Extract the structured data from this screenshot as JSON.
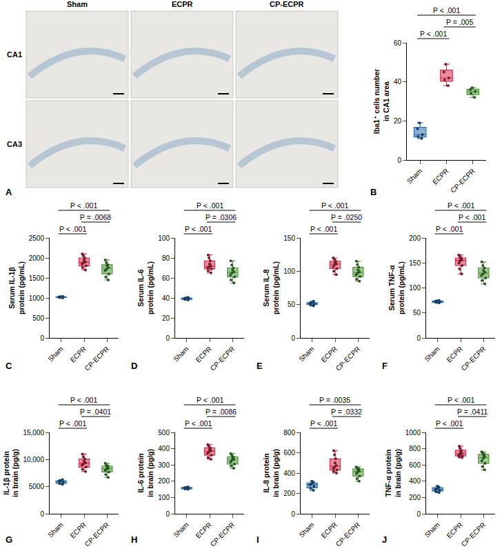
{
  "image_panel": {
    "panel": "A",
    "columns": [
      "Sham",
      "ECPR",
      "CP-ECPR"
    ],
    "rows": [
      "CA1",
      "CA3"
    ]
  },
  "chart_data": [
    {
      "type": "box",
      "panel": "B",
      "ylabel": "Iba1⁺ cells number\nin CA1 area",
      "categories": [
        "Sham",
        "ECPR",
        "CP-ECPR"
      ],
      "colors": [
        "#2f6fb0",
        "#d6304f",
        "#4f9a3a"
      ],
      "values": [
        [
          11,
          12,
          13,
          16,
          19
        ],
        [
          38,
          41,
          42,
          45,
          49
        ],
        [
          32,
          34,
          35,
          36,
          37
        ]
      ],
      "ylim": [
        0,
        60
      ],
      "yticks": [
        0,
        20,
        40,
        60
      ],
      "comparisons": [
        {
          "groups": [
            "Sham",
            "ECPR"
          ],
          "label": "P < .001"
        },
        {
          "groups": [
            "ECPR",
            "CP-ECPR"
          ],
          "label": "P = .005"
        },
        {
          "groups": [
            "Sham",
            "CP-ECPR"
          ],
          "label": "P < .001"
        }
      ]
    },
    {
      "type": "box",
      "panel": "C",
      "ylabel": "Serum IL-1β\nprotein (pg/mL)",
      "categories": [
        "Sham",
        "ECPR",
        "CP-ECPR"
      ],
      "colors": [
        "#2f6fb0",
        "#d6304f",
        "#4f9a3a"
      ],
      "values": [
        [
          1000,
          1010,
          1020,
          1025,
          1030,
          1040
        ],
        [
          1700,
          1760,
          1800,
          1850,
          1880,
          1900,
          1950,
          2000,
          2050,
          2100
        ],
        [
          1450,
          1520,
          1600,
          1680,
          1720,
          1760,
          1800,
          1830,
          1880,
          1950
        ]
      ],
      "ylim": [
        0,
        2500
      ],
      "yticks": [
        0,
        500,
        1000,
        1500,
        2000,
        2500
      ],
      "comparisons": [
        {
          "groups": [
            "Sham",
            "ECPR"
          ],
          "label": "P < .001"
        },
        {
          "groups": [
            "ECPR",
            "CP-ECPR"
          ],
          "label": "P = .0068"
        },
        {
          "groups": [
            "Sham",
            "CP-ECPR"
          ],
          "label": "P < .001"
        }
      ]
    },
    {
      "type": "box",
      "panel": "D",
      "ylabel": "Serum IL-6\nprotein (pg/mL)",
      "categories": [
        "Sham",
        "ECPR",
        "CP-ECPR"
      ],
      "colors": [
        "#2f6fb0",
        "#d6304f",
        "#4f9a3a"
      ],
      "values": [
        [
          38,
          38.5,
          39,
          39.5,
          40,
          40.5
        ],
        [
          65,
          67,
          69,
          70,
          71,
          72,
          74,
          77,
          80,
          83
        ],
        [
          55,
          58,
          61,
          63,
          65,
          66,
          68,
          70,
          73,
          77
        ]
      ],
      "ylim": [
        0,
        100
      ],
      "yticks": [
        0,
        20,
        40,
        60,
        80,
        100
      ],
      "comparisons": [
        {
          "groups": [
            "Sham",
            "ECPR"
          ],
          "label": "P < .001"
        },
        {
          "groups": [
            "ECPR",
            "CP-ECPR"
          ],
          "label": "P = .0306"
        },
        {
          "groups": [
            "Sham",
            "CP-ECPR"
          ],
          "label": "P < .001"
        }
      ]
    },
    {
      "type": "box",
      "panel": "E",
      "ylabel": "Serum IL-8\nprotein (pg/mL)",
      "categories": [
        "Sham",
        "ECPR",
        "CP-ECPR"
      ],
      "colors": [
        "#2f6fb0",
        "#d6304f",
        "#4f9a3a"
      ],
      "values": [
        [
          48,
          50,
          51,
          52,
          53,
          55
        ],
        [
          95,
          100,
          104,
          107,
          110,
          111,
          113,
          115,
          118,
          120
        ],
        [
          85,
          88,
          92,
          95,
          97,
          99,
          102,
          106,
          110,
          115
        ]
      ],
      "ylim": [
        0,
        150
      ],
      "yticks": [
        0,
        50,
        100,
        150
      ],
      "comparisons": [
        {
          "groups": [
            "Sham",
            "ECPR"
          ],
          "label": "P < .001"
        },
        {
          "groups": [
            "ECPR",
            "CP-ECPR"
          ],
          "label": "P = .0250"
        },
        {
          "groups": [
            "Sham",
            "CP-ECPR"
          ],
          "label": "P < .001"
        }
      ]
    },
    {
      "type": "box",
      "panel": "F",
      "ylabel": "Serum TNF-α\nprotein (pg/mL)",
      "categories": [
        "Sham",
        "ECPR",
        "CP-ECPR"
      ],
      "colors": [
        "#2f6fb0",
        "#d6304f",
        "#4f9a3a"
      ],
      "values": [
        [
          70,
          71,
          72,
          73,
          74,
          75
        ],
        [
          128,
          138,
          145,
          150,
          154,
          156,
          158,
          160,
          163,
          166
        ],
        [
          108,
          115,
          120,
          125,
          128,
          131,
          135,
          140,
          145,
          152
        ]
      ],
      "ylim": [
        0,
        200
      ],
      "yticks": [
        0,
        50,
        100,
        150,
        200
      ],
      "comparisons": [
        {
          "groups": [
            "Sham",
            "ECPR"
          ],
          "label": "P < .001"
        },
        {
          "groups": [
            "ECPR",
            "CP-ECPR"
          ],
          "label": "P < .001"
        },
        {
          "groups": [
            "Sham",
            "CP-ECPR"
          ],
          "label": "P < .001"
        }
      ]
    },
    {
      "type": "box",
      "panel": "G",
      "ylabel": "IL-1β protein\nin brain (pg/g)",
      "categories": [
        "Sham",
        "ECPR",
        "CP-ECPR"
      ],
      "colors": [
        "#2f6fb0",
        "#d6304f",
        "#4f9a3a"
      ],
      "values": [
        [
          5400,
          5600,
          5800,
          6000,
          6100,
          6300
        ],
        [
          7800,
          8200,
          8600,
          9000,
          9200,
          9400,
          9700,
          10100,
          10500,
          11000
        ],
        [
          6700,
          7200,
          7700,
          8000,
          8200,
          8400,
          8600,
          8800,
          9000,
          9300
        ]
      ],
      "ylim": [
        0,
        15000
      ],
      "yticks": [
        0,
        5000,
        {
          "value": 10000,
          "label": "10,000"
        },
        {
          "value": 15000,
          "label": "15,000"
        }
      ],
      "comparisons": [
        {
          "groups": [
            "Sham",
            "ECPR"
          ],
          "label": "P < .001"
        },
        {
          "groups": [
            "ECPR",
            "CP-ECPR"
          ],
          "label": "P = .0401"
        },
        {
          "groups": [
            "Sham",
            "CP-ECPR"
          ],
          "label": "P < .001"
        }
      ]
    },
    {
      "type": "box",
      "panel": "H",
      "ylabel": "IL-6 protein\nin brain (pg/g)",
      "categories": [
        "Sham",
        "ECPR",
        "CP-ECPR"
      ],
      "colors": [
        "#2f6fb0",
        "#d6304f",
        "#4f9a3a"
      ],
      "values": [
        [
          150,
          153,
          156,
          159,
          162,
          165
        ],
        [
          335,
          345,
          360,
          372,
          380,
          388,
          395,
          405,
          415,
          425
        ],
        [
          280,
          295,
          305,
          318,
          328,
          335,
          342,
          350,
          360,
          370
        ]
      ],
      "ylim": [
        0,
        500
      ],
      "yticks": [
        0,
        100,
        200,
        300,
        400,
        500
      ],
      "comparisons": [
        {
          "groups": [
            "Sham",
            "ECPR"
          ],
          "label": "P < .001"
        },
        {
          "groups": [
            "ECPR",
            "CP-ECPR"
          ],
          "label": "P = .0086"
        },
        {
          "groups": [
            "Sham",
            "CP-ECPR"
          ],
          "label": "P < .001"
        }
      ]
    },
    {
      "type": "box",
      "panel": "I",
      "ylabel": "IL-8 protein\nin brain (pg/g)",
      "categories": [
        "Sham",
        "ECPR",
        "CP-ECPR"
      ],
      "colors": [
        "#2f6fb0",
        "#d6304f",
        "#4f9a3a"
      ],
      "values": [
        [
          230,
          250,
          270,
          285,
          295,
          305,
          320
        ],
        [
          400,
          415,
          430,
          445,
          460,
          475,
          500,
          540,
          580,
          620
        ],
        [
          320,
          345,
          370,
          395,
          410,
          420,
          430,
          440,
          450,
          460
        ]
      ],
      "ylim": [
        0,
        800
      ],
      "yticks": [
        0,
        200,
        400,
        600,
        800
      ],
      "comparisons": [
        {
          "groups": [
            "Sham",
            "ECPR"
          ],
          "label": "P < .001"
        },
        {
          "groups": [
            "ECPR",
            "CP-ECPR"
          ],
          "label": "P = .0332"
        },
        {
          "groups": [
            "Sham",
            "CP-ECPR"
          ],
          "label": "P = .0035"
        }
      ]
    },
    {
      "type": "box",
      "panel": "J",
      "ylabel": "TNF-α protein\nin brain (pg/g)",
      "categories": [
        "Sham",
        "ECPR",
        "CP-ECPR"
      ],
      "colors": [
        "#2f6fb0",
        "#d6304f",
        "#4f9a3a"
      ],
      "values": [
        [
          260,
          275,
          290,
          300,
          310,
          325,
          340
        ],
        [
          690,
          700,
          710,
          720,
          730,
          745,
          760,
          780,
          805,
          830
        ],
        [
          540,
          580,
          620,
          650,
          680,
          700,
          715,
          730,
          745,
          760
        ]
      ],
      "ylim": [
        0,
        1000
      ],
      "yticks": [
        0,
        200,
        400,
        600,
        800,
        1000
      ],
      "comparisons": [
        {
          "groups": [
            "Sham",
            "ECPR"
          ],
          "label": "P < .001"
        },
        {
          "groups": [
            "ECPR",
            "CP-ECPR"
          ],
          "label": "P = .0411"
        },
        {
          "groups": [
            "Sham",
            "CP-ECPR"
          ],
          "label": "P < .001"
        }
      ]
    }
  ]
}
